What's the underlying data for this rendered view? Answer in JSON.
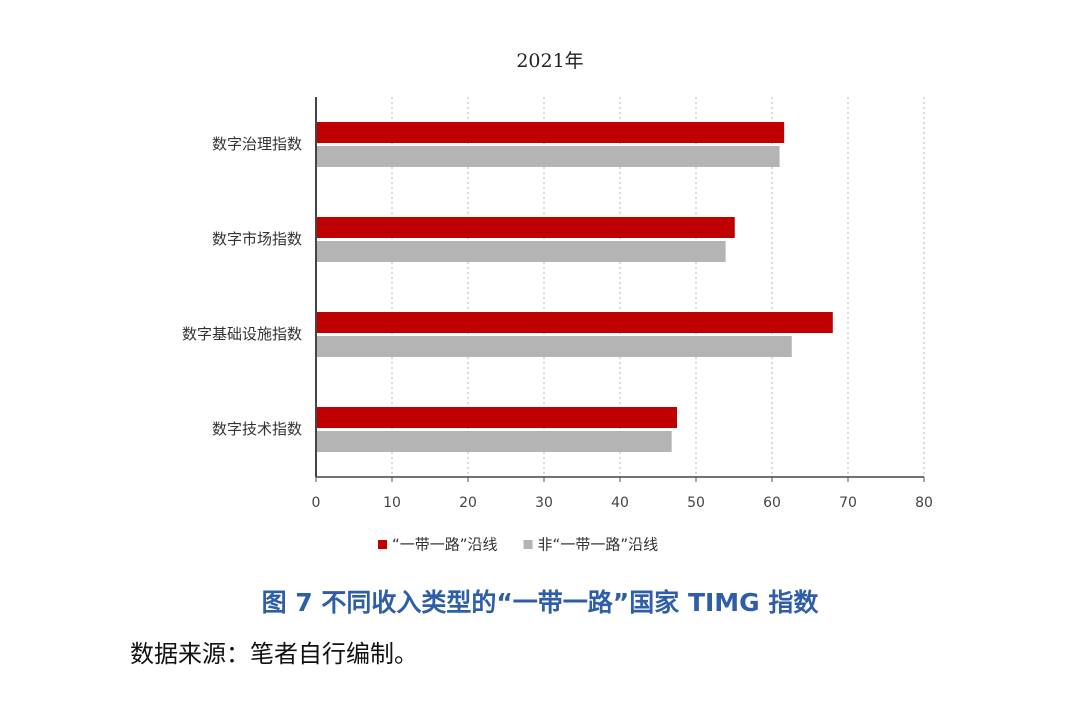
{
  "chart_data": {
    "type": "bar",
    "orientation": "horizontal",
    "title": "2021年",
    "categories": [
      "数字治理指数",
      "数字市场指数",
      "数字基础设施指数",
      "数字技术指数"
    ],
    "series": [
      {
        "name": "“一带一路”沿线",
        "color": "#c00000",
        "values": [
          61.6,
          55.1,
          68.0,
          47.5
        ]
      },
      {
        "name": "非“一带一路”沿线",
        "color": "#b4b4b4",
        "values": [
          61.0,
          53.9,
          62.6,
          46.8
        ]
      }
    ],
    "xlim": [
      0,
      80
    ],
    "xticks": [
      0,
      10,
      20,
      30,
      40,
      50,
      60,
      70,
      80
    ],
    "grid": true,
    "legend": "bottom"
  },
  "caption": "图 7   不同收入类型的“一带一路”国家 TIMG 指数",
  "source": "数据来源：笔者自行编制。"
}
